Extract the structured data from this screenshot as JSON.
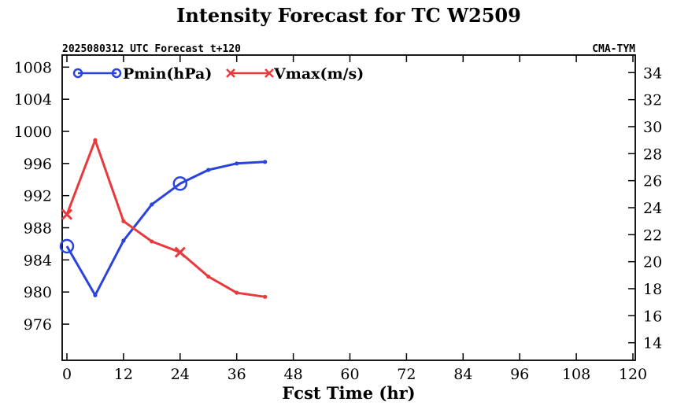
{
  "chart_data": {
    "type": "line",
    "title": "Intensity Forecast for TC W2509",
    "subtitle_left": "2025080312 UTC Forecast t+120",
    "subtitle_right": "CMA-TYM",
    "xlabel": "Fcst Time (hr)",
    "x_ticks": [
      0,
      12,
      24,
      36,
      48,
      60,
      72,
      84,
      96,
      108,
      120
    ],
    "xlim": [
      -1,
      120.5
    ],
    "y_left_ticks": [
      976,
      980,
      984,
      988,
      992,
      996,
      1000,
      1004,
      1008
    ],
    "y_left_lim": [
      971.5,
      1009.5
    ],
    "y_right_ticks": [
      14,
      16,
      18,
      20,
      22,
      24,
      26,
      28,
      30,
      32,
      34
    ],
    "y_right_lim": [
      12.7,
      35.3
    ],
    "x": [
      0,
      6,
      12,
      18,
      24,
      30,
      36,
      42
    ],
    "series": [
      {
        "name": "Pmin(hPa)",
        "axis": "left",
        "color": "#2a43dc",
        "marker": "circle",
        "values": [
          985.7,
          979.6,
          986.4,
          990.9,
          993.5,
          995.2,
          996.0,
          996.2
        ]
      },
      {
        "name": "Vmax(m/s)",
        "axis": "right",
        "color": "#e8393d",
        "marker": "x",
        "values": [
          23.5,
          29.0,
          23.0,
          21.5,
          20.7,
          18.9,
          17.7,
          17.4
        ]
      }
    ],
    "grid": false,
    "legend_position": "top-left"
  }
}
